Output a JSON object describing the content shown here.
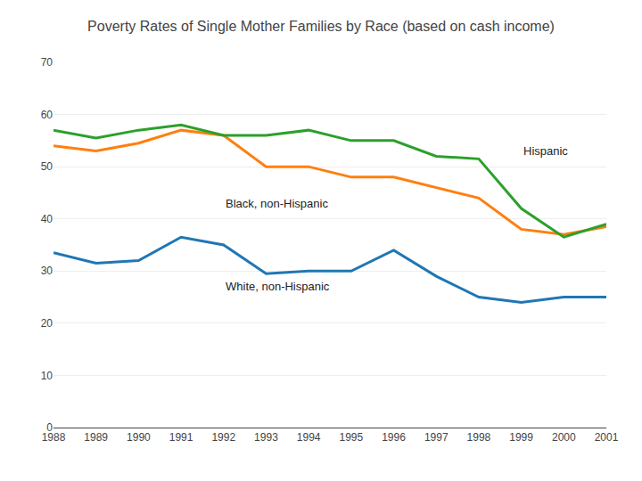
{
  "chart_data": {
    "type": "line",
    "title": "Poverty Rates of Single Mother Families by Race (based on cash income)",
    "x": [
      1988,
      1989,
      1990,
      1991,
      1992,
      1993,
      1994,
      1995,
      1996,
      1997,
      1998,
      1999,
      2000,
      2001
    ],
    "series": [
      {
        "values": [
          33.5,
          31.5,
          32,
          36.5,
          35,
          29.5,
          30,
          30,
          34,
          29,
          25,
          24,
          25,
          25
        ]
      },
      {
        "values": [
          54,
          53,
          54.5,
          57,
          56,
          50,
          50,
          48,
          48,
          46,
          44,
          38,
          37,
          38.5
        ]
      },
      {
        "values": [
          57,
          55.5,
          57,
          58,
          56,
          56,
          57,
          55,
          55,
          52,
          51.5,
          42,
          36.5,
          39
        ]
      }
    ],
    "annotations": [
      {
        "text": "Hispanic",
        "x": 1999,
        "y": 53
      },
      {
        "text": "Black, non-Hispanic",
        "x": 1992,
        "y": 43
      },
      {
        "text": "White, non-Hispanic",
        "x": 1992,
        "y": 27
      }
    ],
    "xlim": [
      1988,
      2001
    ],
    "xticks": [
      1988,
      1989,
      1990,
      1991,
      1992,
      1993,
      1994,
      1995,
      1996,
      1997,
      1998,
      1999,
      2000,
      2001
    ],
    "ylim": [
      0,
      70
    ],
    "yticks": [
      0,
      10,
      20,
      30,
      40,
      50,
      60,
      70
    ],
    "grid": true
  }
}
